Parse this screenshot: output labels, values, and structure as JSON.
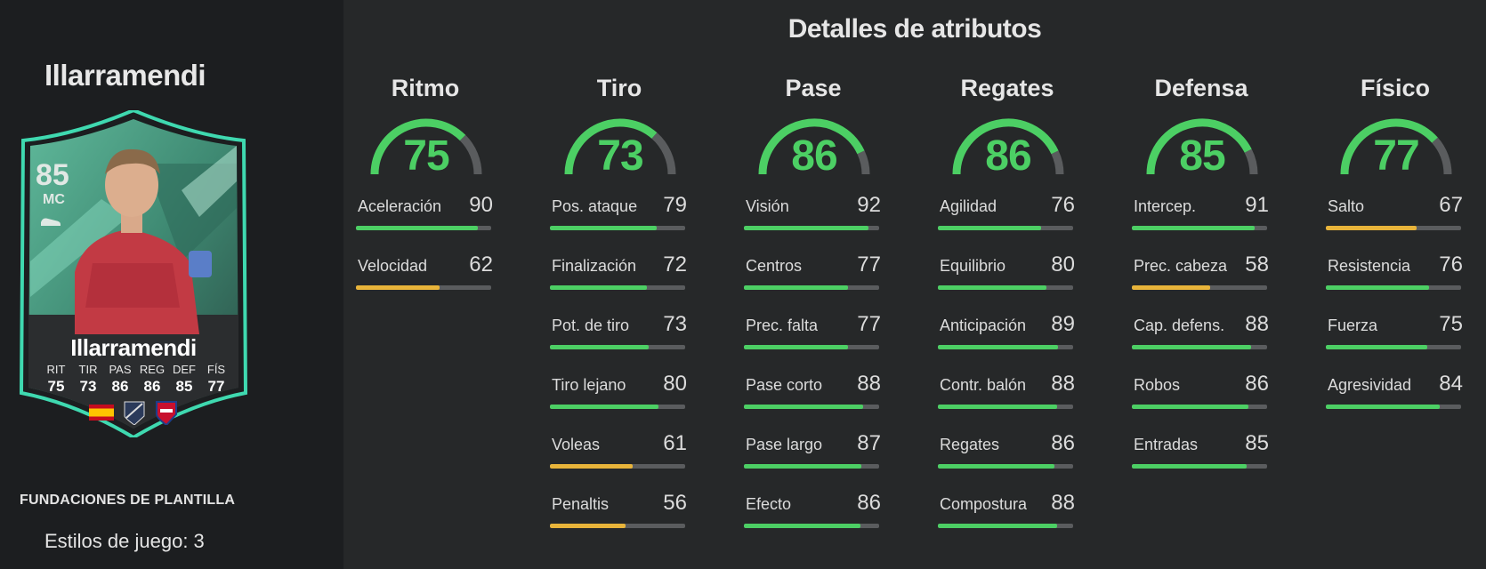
{
  "player": {
    "name": "Illarramendi",
    "rating": "85",
    "position": "MC",
    "card_stats": [
      {
        "label": "RIT",
        "value": "75"
      },
      {
        "label": "TIR",
        "value": "73"
      },
      {
        "label": "PAS",
        "value": "86"
      },
      {
        "label": "REG",
        "value": "86"
      },
      {
        "label": "DEF",
        "value": "85"
      },
      {
        "label": "FÍS",
        "value": "77"
      }
    ],
    "foundation": "FUNDACIONES DE PLANTILLA",
    "playstyles": "Estilos de juego: 3"
  },
  "section_title": "Detalles de atributos",
  "colors": {
    "high": "#4ccf64",
    "medium": "#e8b43a",
    "track": "#5a5c5e",
    "card_accent": "#3fd9b0"
  },
  "categories": [
    {
      "title": "Ritmo",
      "value": 75,
      "attributes": [
        {
          "label": "Aceleración",
          "value": 90
        },
        {
          "label": "Velocidad",
          "value": 62
        }
      ]
    },
    {
      "title": "Tiro",
      "value": 73,
      "attributes": [
        {
          "label": "Pos. ataque",
          "value": 79
        },
        {
          "label": "Finalización",
          "value": 72
        },
        {
          "label": "Pot. de tiro",
          "value": 73
        },
        {
          "label": "Tiro lejano",
          "value": 80
        },
        {
          "label": "Voleas",
          "value": 61
        },
        {
          "label": "Penaltis",
          "value": 56
        }
      ]
    },
    {
      "title": "Pase",
      "value": 86,
      "attributes": [
        {
          "label": "Visión",
          "value": 92
        },
        {
          "label": "Centros",
          "value": 77
        },
        {
          "label": "Prec. falta",
          "value": 77
        },
        {
          "label": "Pase corto",
          "value": 88
        },
        {
          "label": "Pase largo",
          "value": 87
        },
        {
          "label": "Efecto",
          "value": 86
        }
      ]
    },
    {
      "title": "Regates",
      "value": 86,
      "attributes": [
        {
          "label": "Agilidad",
          "value": 76
        },
        {
          "label": "Equilibrio",
          "value": 80
        },
        {
          "label": "Anticipación",
          "value": 89
        },
        {
          "label": "Contr. balón",
          "value": 88
        },
        {
          "label": "Regates",
          "value": 86
        },
        {
          "label": "Compostura",
          "value": 88
        }
      ]
    },
    {
      "title": "Defensa",
      "value": 85,
      "attributes": [
        {
          "label": "Intercep.",
          "value": 91
        },
        {
          "label": "Prec. cabeza",
          "value": 58
        },
        {
          "label": "Cap. defens.",
          "value": 88
        },
        {
          "label": "Robos",
          "value": 86
        },
        {
          "label": "Entradas",
          "value": 85
        }
      ]
    },
    {
      "title": "Físico",
      "value": 77,
      "attributes": [
        {
          "label": "Salto",
          "value": 67
        },
        {
          "label": "Resistencia",
          "value": 76
        },
        {
          "label": "Fuerza",
          "value": 75
        },
        {
          "label": "Agresividad",
          "value": 84
        }
      ]
    }
  ]
}
